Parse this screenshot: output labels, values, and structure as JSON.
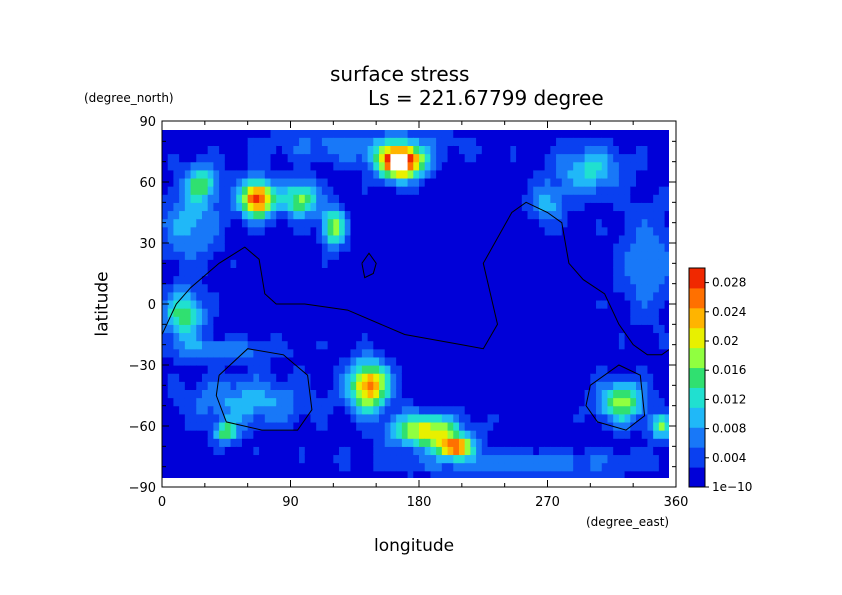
{
  "chart_data": {
    "type": "heatmap",
    "title": "surface stress",
    "subtitle": "Ls = 221.67799 degree",
    "xlabel": "longitude",
    "ylabel": "latitude",
    "x_units": "(degree_east)",
    "y_units": "(degree_north)",
    "xlim": [
      0,
      360
    ],
    "ylim": [
      -90,
      90
    ],
    "x_ticks": [
      "0",
      "90",
      "180",
      "270",
      "360"
    ],
    "y_ticks": [
      "90",
      "60",
      "30",
      "0",
      "−30",
      "−60",
      "−90"
    ],
    "x_tick_values": [
      0,
      90,
      180,
      270,
      360
    ],
    "y_tick_values": [
      90,
      60,
      30,
      0,
      -30,
      -60,
      -90
    ],
    "colorbar": {
      "min": 0,
      "max": 0.03,
      "tick_labels": [
        "1e−10",
        "0.004",
        "0.008",
        "0.012",
        "0.016",
        "0.02",
        "0.024",
        "0.028"
      ],
      "tick_values": [
        0,
        0.004,
        0.008,
        0.012,
        0.016,
        0.02,
        0.024,
        0.028
      ],
      "colors": [
        "#0000d8",
        "#0a40f0",
        "#1878f8",
        "#20b8f8",
        "#20e0d0",
        "#30e070",
        "#90ff40",
        "#e8f000",
        "#ffb400",
        "#ff7000",
        "#f02800"
      ]
    },
    "features": [
      {
        "lon": 167,
        "lat": 70,
        "lon_radius": 16,
        "lat_radius": 8,
        "peak": 0.032
      },
      {
        "lon": 67,
        "lat": 52,
        "lon_radius": 12,
        "lat_radius": 9,
        "peak": 0.028
      },
      {
        "lon": 28,
        "lat": 60,
        "lon_radius": 12,
        "lat_radius": 9,
        "peak": 0.012
      },
      {
        "lon": 97,
        "lat": 52,
        "lon_radius": 12,
        "lat_radius": 9,
        "peak": 0.016
      },
      {
        "lon": 120,
        "lat": 38,
        "lon_radius": 8,
        "lat_radius": 10,
        "peak": 0.016
      },
      {
        "lon": 20,
        "lat": 40,
        "lon_radius": 20,
        "lat_radius": 18,
        "peak": 0.008
      },
      {
        "lon": 15,
        "lat": -5,
        "lon_radius": 14,
        "lat_radius": 12,
        "peak": 0.014
      },
      {
        "lon": 145,
        "lat": -40,
        "lon_radius": 14,
        "lat_radius": 12,
        "peak": 0.024
      },
      {
        "lon": 185,
        "lat": -62,
        "lon_radius": 24,
        "lat_radius": 8,
        "peak": 0.02
      },
      {
        "lon": 205,
        "lat": -70,
        "lon_radius": 12,
        "lat_radius": 5,
        "peak": 0.024
      },
      {
        "lon": 60,
        "lat": -48,
        "lon_radius": 40,
        "lat_radius": 12,
        "peak": 0.008
      },
      {
        "lon": 45,
        "lat": -63,
        "lon_radius": 8,
        "lat_radius": 5,
        "peak": 0.014
      },
      {
        "lon": 322,
        "lat": -48,
        "lon_radius": 16,
        "lat_radius": 10,
        "peak": 0.016
      },
      {
        "lon": 350,
        "lat": -60,
        "lon_radius": 8,
        "lat_radius": 6,
        "peak": 0.014
      },
      {
        "lon": 300,
        "lat": 66,
        "lon_radius": 22,
        "lat_radius": 12,
        "peak": 0.01
      },
      {
        "lon": 270,
        "lat": 50,
        "lon_radius": 12,
        "lat_radius": 10,
        "peak": 0.008
      },
      {
        "lon": 40,
        "lat": -22,
        "lon_radius": 40,
        "lat_radius": 5,
        "peak": 0.007
      },
      {
        "lon": 140,
        "lat": 78,
        "lon_radius": 60,
        "lat_radius": 8,
        "peak": 0.006
      },
      {
        "lon": 250,
        "lat": -78,
        "lon_radius": 90,
        "lat_radius": 6,
        "peak": 0.006
      },
      {
        "lon": 340,
        "lat": 20,
        "lon_radius": 20,
        "lat_radius": 25,
        "peak": 0.006
      }
    ],
    "contours": [
      [
        [
          0,
          -15
        ],
        [
          10,
          0
        ],
        [
          20,
          8
        ],
        [
          40,
          20
        ],
        [
          58,
          28
        ],
        [
          68,
          22
        ],
        [
          72,
          5
        ],
        [
          80,
          0
        ],
        [
          100,
          0
        ],
        [
          130,
          -3
        ],
        [
          170,
          -15
        ],
        [
          210,
          -20
        ],
        [
          225,
          -22
        ],
        [
          235,
          -10
        ],
        [
          225,
          20
        ],
        [
          245,
          45
        ],
        [
          255,
          50
        ],
        [
          270,
          45
        ],
        [
          280,
          40
        ],
        [
          285,
          20
        ],
        [
          295,
          12
        ],
        [
          310,
          5
        ],
        [
          320,
          -10
        ],
        [
          330,
          -20
        ],
        [
          340,
          -25
        ],
        [
          350,
          -25
        ],
        [
          360,
          -20
        ]
      ],
      [
        [
          140,
          20
        ],
        [
          145,
          25
        ],
        [
          150,
          20
        ],
        [
          148,
          15
        ],
        [
          142,
          13
        ],
        [
          140,
          20
        ]
      ],
      [
        [
          40,
          -35
        ],
        [
          60,
          -22
        ],
        [
          85,
          -25
        ],
        [
          102,
          -35
        ],
        [
          105,
          -52
        ],
        [
          95,
          -62
        ],
        [
          70,
          -62
        ],
        [
          45,
          -58
        ],
        [
          38,
          -45
        ],
        [
          40,
          -35
        ]
      ],
      [
        [
          300,
          -40
        ],
        [
          320,
          -30
        ],
        [
          335,
          -35
        ],
        [
          338,
          -55
        ],
        [
          325,
          -62
        ],
        [
          305,
          -58
        ],
        [
          297,
          -50
        ],
        [
          300,
          -40
        ]
      ]
    ]
  }
}
